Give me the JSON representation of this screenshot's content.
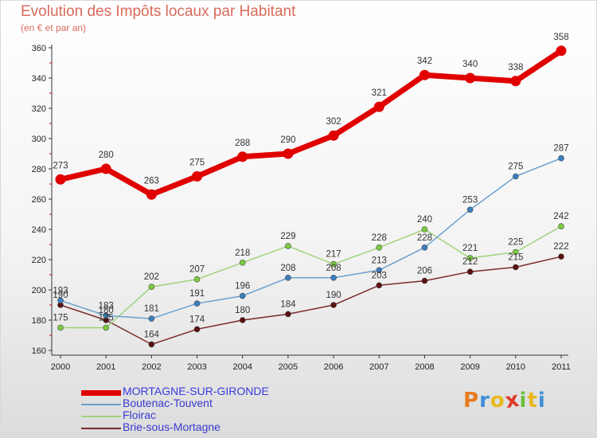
{
  "title": "Evolution des Impôts locaux par Habitant",
  "subtitle": "(en € et par an)",
  "brand": {
    "letters": [
      "P",
      "r",
      "o",
      "x",
      "i",
      "t",
      "i"
    ],
    "colors": [
      "#e87a1e",
      "#3f8fd6",
      "#e8b81e",
      "#e03a2a",
      "#6bbf3a",
      "#e8b81e",
      "#3f8fd6"
    ]
  },
  "chart_data": {
    "type": "line",
    "title": "Evolution des Impôts locaux par Habitant",
    "subtitle": "(en € et par an)",
    "x": [
      "2000",
      "2001",
      "2002",
      "2003",
      "2004",
      "2005",
      "2006",
      "2007",
      "2008",
      "2009",
      "2010",
      "2011"
    ],
    "ylim": [
      160,
      360
    ],
    "yticks": [
      160,
      180,
      200,
      220,
      240,
      260,
      280,
      300,
      320,
      340,
      360
    ],
    "grid": false,
    "legend_position": "bottom-left",
    "series": [
      {
        "name": "MORTAGNE-SUR-GIRONDE",
        "color": "#e00000",
        "marker": "#e00000",
        "width": 7,
        "radius": 6.5,
        "labelOffset": -14,
        "values": [
          273,
          280,
          263,
          275,
          288,
          290,
          302,
          321,
          342,
          340,
          338,
          358
        ]
      },
      {
        "name": "Boutenac-Touvent",
        "color": "#6aa0d0",
        "marker": "#3b7fbf",
        "width": 1.5,
        "radius": 3.5,
        "labelOffset": -9,
        "values": [
          193,
          183,
          181,
          191,
          196,
          208,
          208,
          213,
          228,
          253,
          275,
          287
        ]
      },
      {
        "name": "Floirac",
        "color": "#9ed37a",
        "marker": "#7ccc3f",
        "width": 1.5,
        "radius": 3.5,
        "labelOffset": -9,
        "values": [
          175,
          175,
          202,
          207,
          218,
          229,
          217,
          228,
          240,
          221,
          225,
          242
        ]
      },
      {
        "name": "Brie-sous-Mortagne",
        "color": "#7a2a2a",
        "marker": "#5a1010",
        "width": 1.5,
        "radius": 3.5,
        "labelOffset": -9,
        "values": [
          190,
          180,
          164,
          174,
          180,
          184,
          190,
          203,
          206,
          212,
          215,
          222
        ]
      }
    ]
  }
}
